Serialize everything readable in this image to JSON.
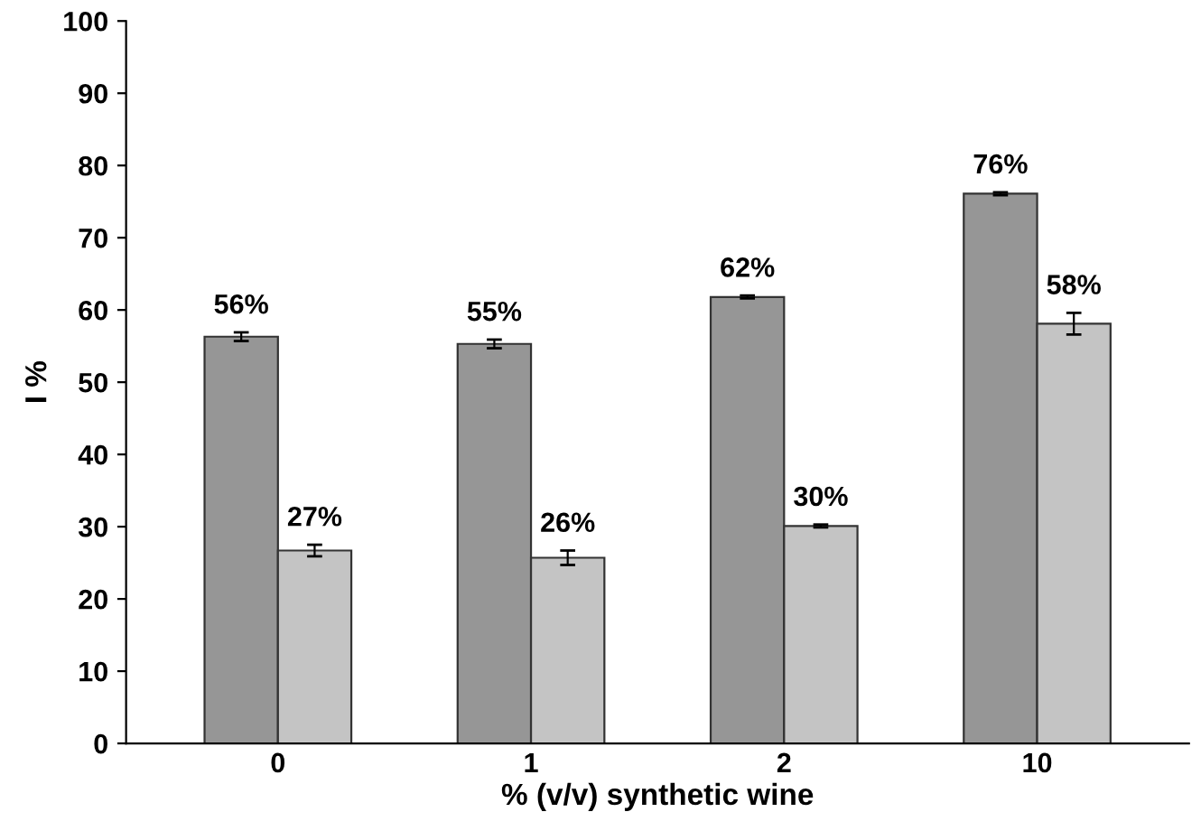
{
  "chart_data": {
    "type": "bar",
    "xlabel": "% (v/v) synthetic wine",
    "ylabel": "I %",
    "categories": [
      "0",
      "1",
      "2",
      "10"
    ],
    "series": [
      {
        "color": "#969696",
        "values": [
          56.3,
          55.3,
          61.8,
          76.1
        ],
        "errors": [
          0.6,
          0.6,
          0.2,
          0.2
        ],
        "value_labels": [
          "56%",
          "55%",
          "62%",
          "76%"
        ]
      },
      {
        "color": "#c4c4c4",
        "values": [
          26.7,
          25.7,
          30.1,
          58.1
        ],
        "errors": [
          0.8,
          1.0,
          0.2,
          1.5
        ],
        "value_labels": [
          "27%",
          "26%",
          "30%",
          "58%"
        ]
      }
    ],
    "ylim": [
      0,
      100
    ],
    "yticks": [
      0,
      10,
      20,
      30,
      40,
      50,
      60,
      70,
      80,
      90,
      100
    ],
    "grid": false,
    "legend": false
  }
}
